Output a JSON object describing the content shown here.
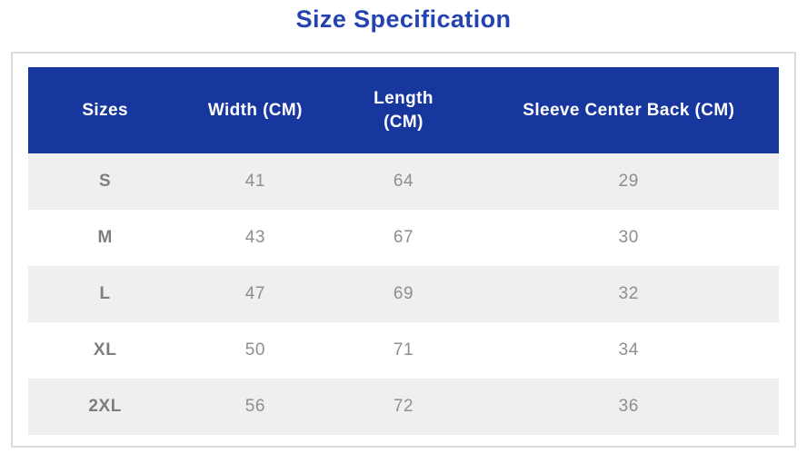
{
  "page": {
    "title": "Size Specification"
  },
  "colors": {
    "title_text": "#2443b0",
    "header_bg": "#17379e",
    "header_text": "#ffffff",
    "row_alt_bg": "#f0efed",
    "row_bg": "#ffffff",
    "cell_text": "#8e8e8e",
    "panel_border": "#dbdbdb"
  },
  "chart_data": {
    "type": "table",
    "title": "Size Specification",
    "columns": [
      "Sizes",
      "Width (CM)",
      "Length (CM)",
      "Sleeve Center Back (CM)"
    ],
    "rows": [
      [
        "S",
        41,
        64,
        29
      ],
      [
        "M",
        43,
        67,
        30
      ],
      [
        "L",
        47,
        69,
        32
      ],
      [
        "XL",
        50,
        71,
        34
      ],
      [
        "2XL",
        56,
        72,
        36
      ]
    ],
    "layout": {
      "header_style": "solid blue bar, white bold text",
      "row_striping": "odd rows light gray, even rows white",
      "grid": false
    }
  }
}
